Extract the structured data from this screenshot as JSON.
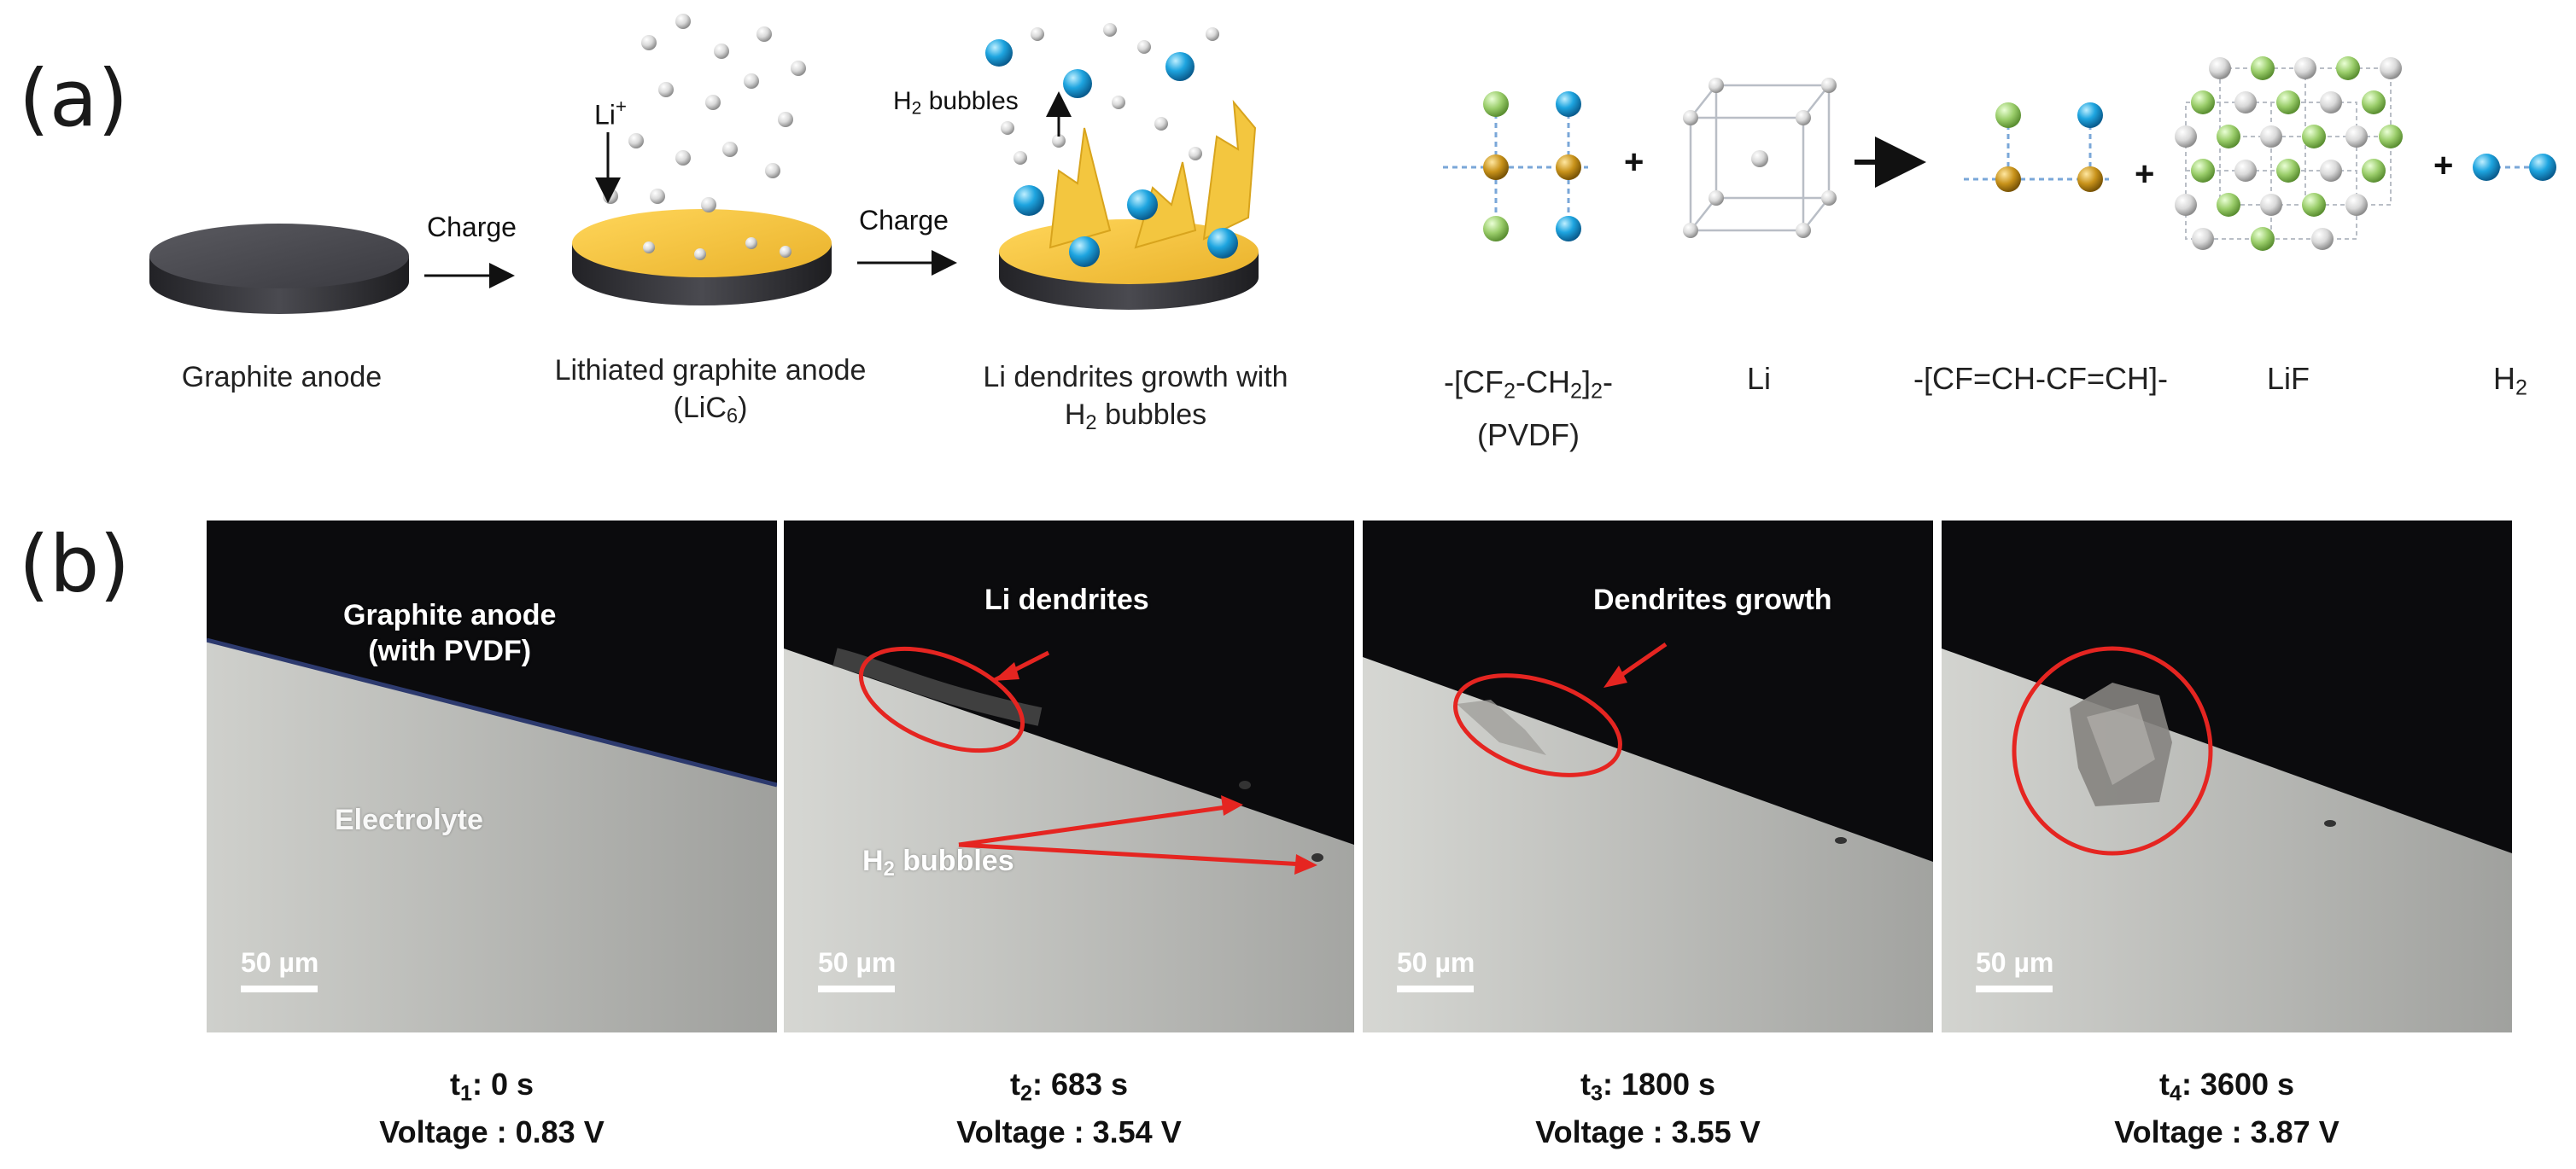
{
  "panel_a": {
    "letter": "(a)",
    "charge_label_1": "Charge",
    "charge_label_2": "Charge",
    "li_ion_label": "Li",
    "li_ion_sup": "+",
    "h2_bubbles_arrow_label": "H",
    "h2_bubbles_arrow_sub": "2",
    "h2_bubbles_arrow_suffix": " bubbles",
    "caption_graphite": "Graphite anode",
    "caption_lithiated_line1": "Lithiated graphite anode",
    "caption_lithiated_line2_prefix": "(LiC",
    "caption_lithiated_line2_sub": "6",
    "caption_lithiated_line2_suffix": ")",
    "caption_dendrites_line1": "Li dendrites growth with",
    "caption_dendrites_line2_prefix": "H",
    "caption_dendrites_line2_sub": "2",
    "caption_dendrites_line2_suffix": " bubbles",
    "reaction": {
      "pvdf_prefix": "-[CF",
      "pvdf_sub1": "2",
      "pvdf_mid": "-CH",
      "pvdf_sub2": "2",
      "pvdf_close": "]",
      "pvdf_sub3": "2",
      "pvdf_end": "-",
      "pvdf_line2": "(PVDF)",
      "li": "Li",
      "product_chain": "-[CF=CH-CF=CH]-",
      "lif": "LiF",
      "h2_prefix": "H",
      "h2_sub": "2",
      "plus": "+"
    }
  },
  "panel_b": {
    "letter": "(b)",
    "frames": [
      {
        "label_line1": "Graphite anode",
        "label_line2": "(with PVDF)",
        "electrolyte_label": "Electrolyte",
        "scale": "50 µm",
        "time_prefix": "t",
        "time_sub": "1",
        "time_value": ": 0 s",
        "voltage": "Voltage : 0.83 V"
      },
      {
        "label_line1": "Li dendrites",
        "bubbles_prefix": "H",
        "bubbles_sub": "2",
        "bubbles_suffix": " bubbles",
        "scale": "50 µm",
        "time_prefix": "t",
        "time_sub": "2",
        "time_value": ": 683 s",
        "voltage": "Voltage : 3.54 V"
      },
      {
        "label_line1": "Dendrites growth",
        "scale": "50 µm",
        "time_prefix": "t",
        "time_sub": "3",
        "time_value": ": 1800 s",
        "voltage": "Voltage : 3.55 V"
      },
      {
        "scale": "50 µm",
        "time_prefix": "t",
        "time_sub": "4",
        "time_value": ": 3600 s",
        "voltage": "Voltage : 3.87 V"
      }
    ]
  },
  "colors": {
    "li_gold": "#f3c63f",
    "disk_dark": "#3b3b40",
    "h2_blue": "#1ea5e0",
    "fluorine_green": "#9acd6a",
    "carbon_gold": "#b8860b",
    "annotation_red": "#e52521",
    "lattice_gray": "#c9cdd4"
  }
}
